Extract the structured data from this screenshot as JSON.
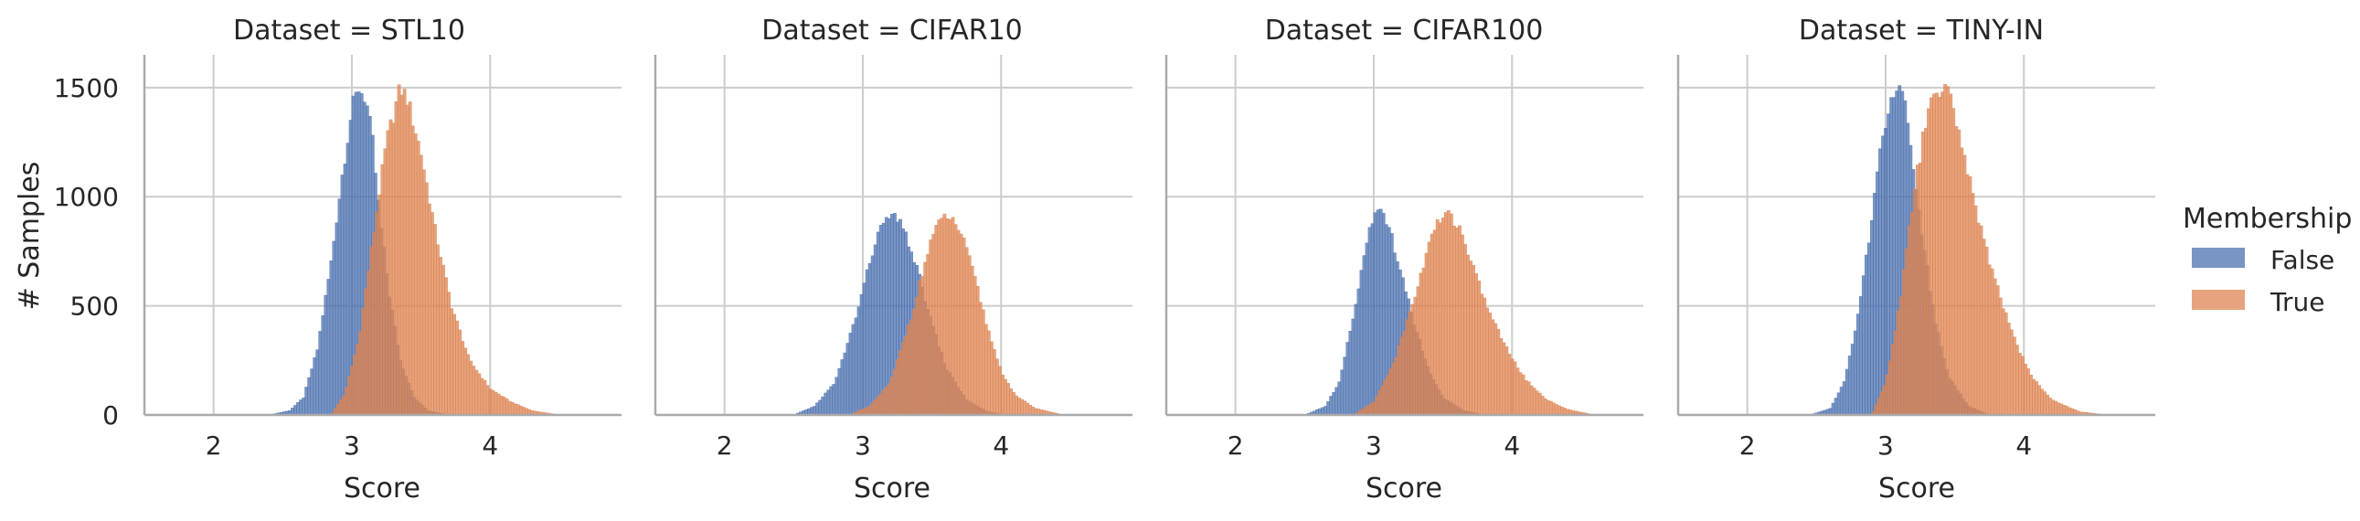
{
  "chart_data": {
    "type": "histogram",
    "ylabel": "# Samples",
    "xlabel": "Score",
    "xlim": [
      1.5,
      4.95
    ],
    "ylim": [
      0,
      1650
    ],
    "xticks": [
      2,
      3,
      4
    ],
    "yticks": [
      0,
      500,
      1000,
      1500
    ],
    "grid": true,
    "legend": {
      "title": "Membership",
      "placement": "right",
      "entries": [
        {
          "label": "False",
          "color": "#4c72b0"
        },
        {
          "label": "True",
          "color": "#dd8452"
        }
      ]
    },
    "bin_width": 0.02,
    "panels": [
      {
        "title": "Dataset = STL10",
        "series": [
          {
            "name": "False",
            "shape": [
              [
                2.4,
                0
              ],
              [
                2.55,
                20
              ],
              [
                2.65,
                80
              ],
              [
                2.75,
                300
              ],
              [
                2.85,
                700
              ],
              [
                2.93,
                1100
              ],
              [
                3.0,
                1400
              ],
              [
                3.05,
                1500
              ],
              [
                3.1,
                1450
              ],
              [
                3.15,
                1250
              ],
              [
                3.2,
                900
              ],
              [
                3.27,
                550
              ],
              [
                3.35,
                250
              ],
              [
                3.45,
                80
              ],
              [
                3.55,
                20
              ],
              [
                3.7,
                0
              ]
            ]
          },
          {
            "name": "True",
            "shape": [
              [
                2.85,
                0
              ],
              [
                2.95,
                100
              ],
              [
                3.05,
                350
              ],
              [
                3.15,
                800
              ],
              [
                3.25,
                1250
              ],
              [
                3.35,
                1500
              ],
              [
                3.4,
                1450
              ],
              [
                3.5,
                1200
              ],
              [
                3.6,
                850
              ],
              [
                3.72,
                500
              ],
              [
                3.85,
                250
              ],
              [
                4.0,
                120
              ],
              [
                4.15,
                60
              ],
              [
                4.3,
                20
              ],
              [
                4.5,
                0
              ]
            ]
          }
        ]
      },
      {
        "title": "Dataset = CIFAR10",
        "series": [
          {
            "name": "False",
            "shape": [
              [
                2.5,
                0
              ],
              [
                2.65,
                40
              ],
              [
                2.8,
                150
              ],
              [
                2.95,
                450
              ],
              [
                3.1,
                820
              ],
              [
                3.2,
                920
              ],
              [
                3.3,
                850
              ],
              [
                3.4,
                650
              ],
              [
                3.5,
                420
              ],
              [
                3.6,
                220
              ],
              [
                3.75,
                70
              ],
              [
                3.9,
                15
              ],
              [
                4.05,
                0
              ]
            ]
          },
          {
            "name": "True",
            "shape": [
              [
                2.9,
                0
              ],
              [
                3.05,
                40
              ],
              [
                3.2,
                150
              ],
              [
                3.35,
                450
              ],
              [
                3.5,
                820
              ],
              [
                3.6,
                920
              ],
              [
                3.7,
                850
              ],
              [
                3.8,
                650
              ],
              [
                3.9,
                400
              ],
              [
                4.0,
                200
              ],
              [
                4.1,
                90
              ],
              [
                4.25,
                30
              ],
              [
                4.45,
                0
              ]
            ]
          }
        ]
      },
      {
        "title": "Dataset = CIFAR100",
        "series": [
          {
            "name": "False",
            "shape": [
              [
                2.5,
                0
              ],
              [
                2.65,
                40
              ],
              [
                2.75,
                150
              ],
              [
                2.85,
                450
              ],
              [
                2.95,
                800
              ],
              [
                3.03,
                940
              ],
              [
                3.1,
                880
              ],
              [
                3.2,
                650
              ],
              [
                3.3,
                400
              ],
              [
                3.4,
                200
              ],
              [
                3.5,
                80
              ],
              [
                3.65,
                20
              ],
              [
                3.8,
                0
              ]
            ]
          },
          {
            "name": "True",
            "shape": [
              [
                2.85,
                0
              ],
              [
                3.0,
                60
              ],
              [
                3.15,
                250
              ],
              [
                3.3,
                550
              ],
              [
                3.43,
                850
              ],
              [
                3.53,
                930
              ],
              [
                3.63,
                850
              ],
              [
                3.73,
                650
              ],
              [
                3.85,
                450
              ],
              [
                3.98,
                280
              ],
              [
                4.1,
                160
              ],
              [
                4.25,
                70
              ],
              [
                4.4,
                25
              ],
              [
                4.6,
                0
              ]
            ]
          }
        ]
      },
      {
        "title": "Dataset = TINY-IN",
        "series": [
          {
            "name": "False",
            "shape": [
              [
                2.45,
                0
              ],
              [
                2.6,
                30
              ],
              [
                2.7,
                150
              ],
              [
                2.8,
                450
              ],
              [
                2.9,
                900
              ],
              [
                2.98,
                1300
              ],
              [
                3.05,
                1480
              ],
              [
                3.1,
                1500
              ],
              [
                3.15,
                1400
              ],
              [
                3.2,
                1150
              ],
              [
                3.27,
                800
              ],
              [
                3.35,
                450
              ],
              [
                3.45,
                180
              ],
              [
                3.6,
                40
              ],
              [
                3.75,
                0
              ]
            ]
          },
          {
            "name": "True",
            "shape": [
              [
                2.9,
                0
              ],
              [
                3.0,
                150
              ],
              [
                3.1,
                500
              ],
              [
                3.2,
                1000
              ],
              [
                3.3,
                1380
              ],
              [
                3.4,
                1500
              ],
              [
                3.45,
                1480
              ],
              [
                3.55,
                1250
              ],
              [
                3.65,
                950
              ],
              [
                3.75,
                700
              ],
              [
                3.85,
                500
              ],
              [
                3.95,
                320
              ],
              [
                4.05,
                180
              ],
              [
                4.2,
                70
              ],
              [
                4.4,
                15
              ],
              [
                4.6,
                0
              ]
            ]
          }
        ]
      }
    ]
  }
}
